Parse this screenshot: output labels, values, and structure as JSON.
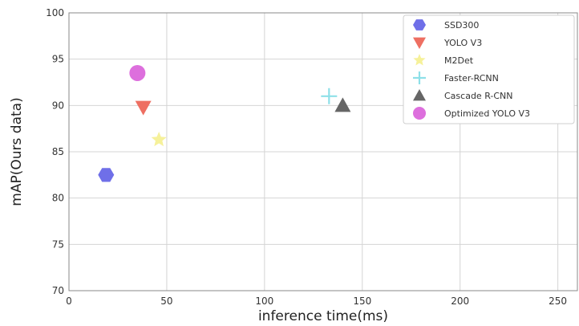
{
  "chart_data": {
    "type": "scatter",
    "title": "",
    "xlabel": "inference time(ms)",
    "ylabel": "mAP(Ours data)",
    "xlim": [
      0,
      260
    ],
    "ylim": [
      70,
      100
    ],
    "xticks": [
      0,
      50,
      100,
      150,
      200,
      250
    ],
    "yticks": [
      70,
      75,
      80,
      85,
      90,
      95,
      100
    ],
    "grid": true,
    "legend_position": "top-right",
    "series": [
      {
        "name": "SSD300",
        "marker": "hexagon",
        "color": "#6f6fe8",
        "x": 19,
        "y": 82.5
      },
      {
        "name": "YOLO V3",
        "marker": "triangle-down",
        "color": "#ee6f62",
        "x": 38,
        "y": 89.8
      },
      {
        "name": "M2Det",
        "marker": "star",
        "color": "#f6f19a",
        "x": 46,
        "y": 86.3
      },
      {
        "name": "Faster-RCNN",
        "marker": "plus",
        "color": "#8ee0e8",
        "x": 133,
        "y": 91
      },
      {
        "name": "Cascade R-CNN",
        "marker": "triangle-up",
        "color": "#666666",
        "x": 140,
        "y": 90
      },
      {
        "name": "Optimized YOLO V3",
        "marker": "circle",
        "color": "#dd6fdd",
        "x": 35,
        "y": 93.5
      }
    ]
  }
}
